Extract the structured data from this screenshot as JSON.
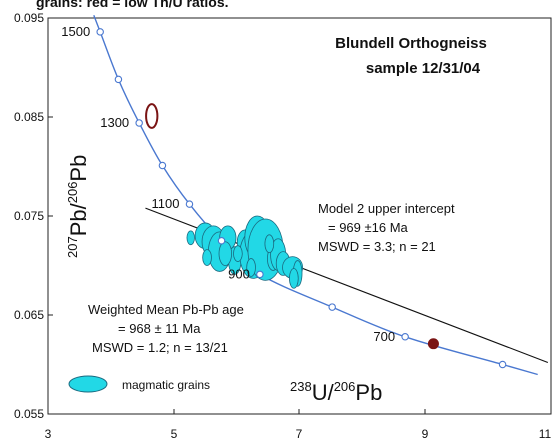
{
  "chart_data": {
    "type": "scatter",
    "header_fragment": "grains: red = low Th/U ratios.",
    "title": [
      "Blundell Orthogneiss",
      "sample  12/31/04"
    ],
    "xlabel": {
      "sup1": "238",
      "base1": "U/",
      "sup2": "206",
      "base2": "Pb"
    },
    "ylabel": {
      "sup1": "207",
      "base1": "Pb/",
      "sup2": "206",
      "base2": "Pb"
    },
    "xlim": [
      3,
      11
    ],
    "ylim": [
      0.055,
      0.095
    ],
    "x_ticks": [
      "3",
      "5",
      "7",
      "9",
      "11"
    ],
    "y_ticks": [
      "0.055",
      "0.065",
      "0.075",
      "0.085",
      "0.095"
    ],
    "colors": {
      "concordia": "#4a78d0",
      "regression": "#111111",
      "magmatic": "#22d8e6",
      "low_thu": "#7a1414",
      "ellipse_stroke": "#1a6a80"
    },
    "concordia_ticks": [
      {
        "age": 1500,
        "label": "1500",
        "x": 3.83,
        "y": 0.0936
      },
      {
        "age": 1400,
        "label": "",
        "x": 4.12,
        "y": 0.0888
      },
      {
        "age": 1300,
        "label": "1300",
        "x": 4.45,
        "y": 0.0844
      },
      {
        "age": 1200,
        "label": "",
        "x": 4.82,
        "y": 0.0801
      },
      {
        "age": 1100,
        "label": "1100",
        "x": 5.25,
        "y": 0.0762
      },
      {
        "age": 1000,
        "label": "",
        "x": 5.76,
        "y": 0.0725
      },
      {
        "age": 900,
        "label": "900",
        "x": 6.37,
        "y": 0.0691
      },
      {
        "age": 800,
        "label": "",
        "x": 7.52,
        "y": 0.0658
      },
      {
        "age": 700,
        "label": "700",
        "x": 8.68,
        "y": 0.0628
      },
      {
        "age": 600,
        "label": "",
        "x": 10.23,
        "y": 0.06
      }
    ],
    "regression_line": {
      "x": [
        4.55,
        10.95
      ],
      "y": [
        0.0758,
        0.0602
      ]
    },
    "magmatic_grains": [
      {
        "x": 5.5,
        "y": 0.073,
        "rx": 0.16,
        "ry": 0.0013
      },
      {
        "x": 5.63,
        "y": 0.0724,
        "rx": 0.18,
        "ry": 0.0016
      },
      {
        "x": 5.73,
        "y": 0.0714,
        "rx": 0.18,
        "ry": 0.002
      },
      {
        "x": 5.86,
        "y": 0.0728,
        "rx": 0.13,
        "ry": 0.0012
      },
      {
        "x": 5.97,
        "y": 0.0705,
        "rx": 0.1,
        "ry": 0.0014
      },
      {
        "x": 5.82,
        "y": 0.0712,
        "rx": 0.1,
        "ry": 0.0012
      },
      {
        "x": 6.14,
        "y": 0.0724,
        "rx": 0.13,
        "ry": 0.0012
      },
      {
        "x": 6.27,
        "y": 0.0711,
        "rx": 0.22,
        "ry": 0.0024
      },
      {
        "x": 6.33,
        "y": 0.0728,
        "rx": 0.2,
        "ry": 0.0022
      },
      {
        "x": 6.46,
        "y": 0.0716,
        "rx": 0.28,
        "ry": 0.0031
      },
      {
        "x": 6.58,
        "y": 0.0707,
        "rx": 0.09,
        "ry": 0.0012
      },
      {
        "x": 6.66,
        "y": 0.0711,
        "rx": 0.12,
        "ry": 0.0016
      },
      {
        "x": 6.74,
        "y": 0.0702,
        "rx": 0.11,
        "ry": 0.0012
      },
      {
        "x": 6.89,
        "y": 0.0698,
        "rx": 0.16,
        "ry": 0.0011
      },
      {
        "x": 6.97,
        "y": 0.0692,
        "rx": 0.07,
        "ry": 0.0013
      },
      {
        "x": 6.91,
        "y": 0.0687,
        "rx": 0.07,
        "ry": 0.001
      },
      {
        "x": 5.27,
        "y": 0.0728,
        "rx": 0.06,
        "ry": 0.0007
      },
      {
        "x": 5.53,
        "y": 0.0708,
        "rx": 0.07,
        "ry": 0.0008
      },
      {
        "x": 6.02,
        "y": 0.0712,
        "rx": 0.07,
        "ry": 0.0008
      },
      {
        "x": 6.23,
        "y": 0.0698,
        "rx": 0.07,
        "ry": 0.0009
      },
      {
        "x": 6.52,
        "y": 0.0722,
        "rx": 0.07,
        "ry": 0.0009
      }
    ],
    "low_thu_grains": [
      {
        "x": 4.65,
        "y": 0.0851,
        "rx": 0.09,
        "ry": 0.0012,
        "filled": false
      },
      {
        "x": 9.13,
        "y": 0.0621,
        "rx": 0.08,
        "ry": 0.0005,
        "filled": true
      }
    ],
    "annotations": {
      "upper_intercept": [
        "Model 2 upper intercept",
        "= 969 ±16 Ma",
        "MSWD = 3.3; n = 21"
      ],
      "weighted_mean": [
        "Weighted Mean Pb-Pb age",
        "= 968 ± 11 Ma",
        "MSWD = 1.2; n = 13/21"
      ]
    },
    "legend": {
      "label": "magmatic grains",
      "position": "bottom-left"
    }
  }
}
